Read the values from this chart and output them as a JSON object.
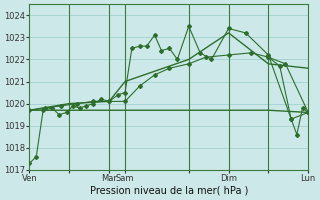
{
  "background_color": "#cce8e8",
  "grid_color": "#99cccc",
  "line_color": "#2d6e2d",
  "title": "Pression niveau de la mer( hPa )",
  "ylim": [
    1017,
    1024.5
  ],
  "yticks": [
    1017,
    1018,
    1019,
    1020,
    1021,
    1022,
    1023,
    1024
  ],
  "xtick_pos": [
    0,
    35,
    70,
    84,
    140,
    175,
    210,
    245
  ],
  "xtick_labels": [
    "Ven",
    "",
    "Mar",
    "Sam",
    "",
    "Dim",
    "",
    "Lun"
  ],
  "day_vlines": [
    35,
    70,
    84,
    140,
    175,
    210
  ],
  "total_x": 245,
  "series1_dotted": {
    "x": [
      0,
      6,
      12,
      20,
      26,
      33,
      38,
      44,
      50,
      56,
      63,
      70,
      78,
      84,
      90,
      97,
      103,
      110,
      116,
      123,
      130,
      140,
      150,
      160,
      175,
      190,
      210,
      230,
      245
    ],
    "y": [
      1017.3,
      1017.6,
      1019.7,
      1019.8,
      1019.5,
      1019.6,
      1019.9,
      1019.8,
      1019.9,
      1020.0,
      1020.2,
      1020.1,
      1020.4,
      1020.5,
      1022.5,
      1022.6,
      1022.6,
      1023.1,
      1022.4,
      1022.5,
      1022.0,
      1023.5,
      1022.3,
      1022.0,
      1023.4,
      1023.2,
      1022.2,
      1019.3,
      1019.6
    ]
  },
  "series2_dotted": {
    "x": [
      0,
      14,
      28,
      42,
      56,
      70,
      84,
      97,
      110,
      123,
      140,
      155,
      175,
      195,
      210,
      225,
      245
    ],
    "y": [
      1019.7,
      1019.8,
      1019.9,
      1020.0,
      1020.1,
      1020.1,
      1020.1,
      1020.8,
      1021.3,
      1021.6,
      1021.8,
      1022.1,
      1022.2,
      1022.3,
      1022.1,
      1021.8,
      1019.6
    ]
  },
  "series3_smooth": {
    "x": [
      0,
      35,
      70,
      84,
      140,
      175,
      210,
      245
    ],
    "y": [
      1019.7,
      1020.0,
      1020.1,
      1021.0,
      1022.0,
      1023.2,
      1021.8,
      1021.6
    ]
  },
  "series4_flat": {
    "x": [
      0,
      84,
      140,
      175,
      210,
      245
    ],
    "y": [
      1019.7,
      1019.7,
      1019.7,
      1019.7,
      1019.7,
      1019.6
    ]
  },
  "series5_right": {
    "x": [
      210,
      220,
      230,
      235,
      240,
      245
    ],
    "y": [
      1022.1,
      1021.7,
      1019.3,
      1018.6,
      1019.8,
      1019.6
    ]
  }
}
